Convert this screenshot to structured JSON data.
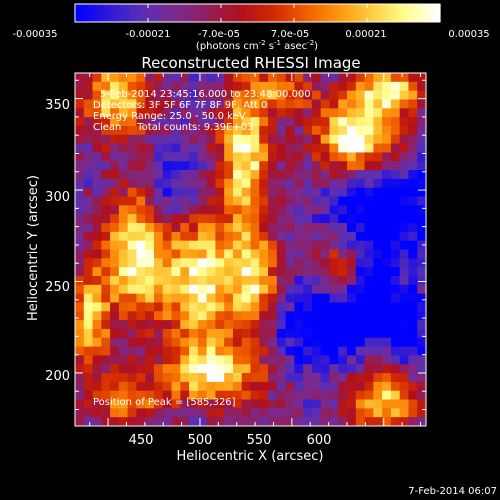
{
  "colorbar": {
    "tick_labels": [
      "-0.00035",
      "-0.00021",
      "-7.0e-05",
      "7.0e-05",
      "0.00021",
      "0.00035"
    ],
    "range": [
      -0.00035,
      0.00035
    ],
    "unit_main": "(photons cm",
    "unit_sup1": "-2",
    "unit_mid": " s",
    "unit_sup2": "-1",
    "unit_tail": " asec",
    "unit_sup3": "-2",
    "unit_close": ")",
    "colors": [
      "#0000ff",
      "#3018d8",
      "#5a2fb4",
      "#7a2a8e",
      "#921e5a",
      "#b0101e",
      "#d22a00",
      "#f06000",
      "#ff9810",
      "#ffd040",
      "#ffff90",
      "#ffffff"
    ]
  },
  "footer": {
    "timestamp": "7-Feb-2014 06:07"
  },
  "chart_data": {
    "type": "heatmap",
    "title": "Reconstructed RHESSI Image",
    "xlabel": "Heliocentric X (arcsec)",
    "ylabel": "Heliocentric Y (arcsec)",
    "xlim": [
      432,
      623
    ],
    "ylim": [
      171,
      364
    ],
    "xticks": [
      450,
      500,
      550,
      600
    ],
    "yticks": [
      200,
      250,
      300,
      350
    ],
    "annotations": [
      "5-Feb-2014 23:45:16.000 to 23:48:00.000",
      "Detectors: 3F 5F 6F 7F 8F 9F, Att 0",
      "Energy Range: 25.0 - 50.0 keV",
      "Clean     Total counts: 9.39E+03"
    ],
    "peak_label": "Position of Peak = [585,326]",
    "peak": [
      585,
      326
    ],
    "grid": {
      "nx": 40,
      "ny": 40,
      "levels": [
        0,
        11
      ],
      "hotspots": [
        {
          "x": 586,
          "y": 330,
          "amp": 9.5,
          "sx": 16,
          "sy": 15
        },
        {
          "x": 605,
          "y": 355,
          "amp": 7.0,
          "sx": 12,
          "sy": 8
        },
        {
          "x": 455,
          "y": 350,
          "amp": 6.5,
          "sx": 14,
          "sy": 16
        },
        {
          "x": 525,
          "y": 320,
          "amp": 7.5,
          "sx": 10,
          "sy": 28
        },
        {
          "x": 545,
          "y": 355,
          "amp": 5.0,
          "sx": 12,
          "sy": 8
        },
        {
          "x": 465,
          "y": 265,
          "amp": 8.0,
          "sx": 12,
          "sy": 25
        },
        {
          "x": 500,
          "y": 250,
          "amp": 7.5,
          "sx": 14,
          "sy": 28
        },
        {
          "x": 530,
          "y": 250,
          "amp": 6.5,
          "sx": 10,
          "sy": 20
        },
        {
          "x": 440,
          "y": 230,
          "amp": 6.0,
          "sx": 8,
          "sy": 20
        },
        {
          "x": 600,
          "y": 185,
          "amp": 6.5,
          "sx": 14,
          "sy": 14
        },
        {
          "x": 575,
          "y": 255,
          "amp": 5.0,
          "sx": 9,
          "sy": 12
        },
        {
          "x": 510,
          "y": 200,
          "amp": 6.5,
          "sx": 20,
          "sy": 12
        },
        {
          "x": 460,
          "y": 185,
          "amp": 4.5,
          "sx": 16,
          "sy": 10
        }
      ],
      "coldspots": [
        {
          "x": 600,
          "y": 290,
          "amp": 4.5,
          "sx": 18,
          "sy": 22
        },
        {
          "x": 565,
          "y": 225,
          "amp": 4.0,
          "sx": 20,
          "sy": 16
        },
        {
          "x": 590,
          "y": 240,
          "amp": 3.5,
          "sx": 14,
          "sy": 14
        },
        {
          "x": 485,
          "y": 300,
          "amp": 3.0,
          "sx": 10,
          "sy": 14
        },
        {
          "x": 612,
          "y": 220,
          "amp": 3.0,
          "sx": 10,
          "sy": 14
        }
      ],
      "baseline": 2.6,
      "noise": 1.4,
      "seed": 7
    }
  }
}
